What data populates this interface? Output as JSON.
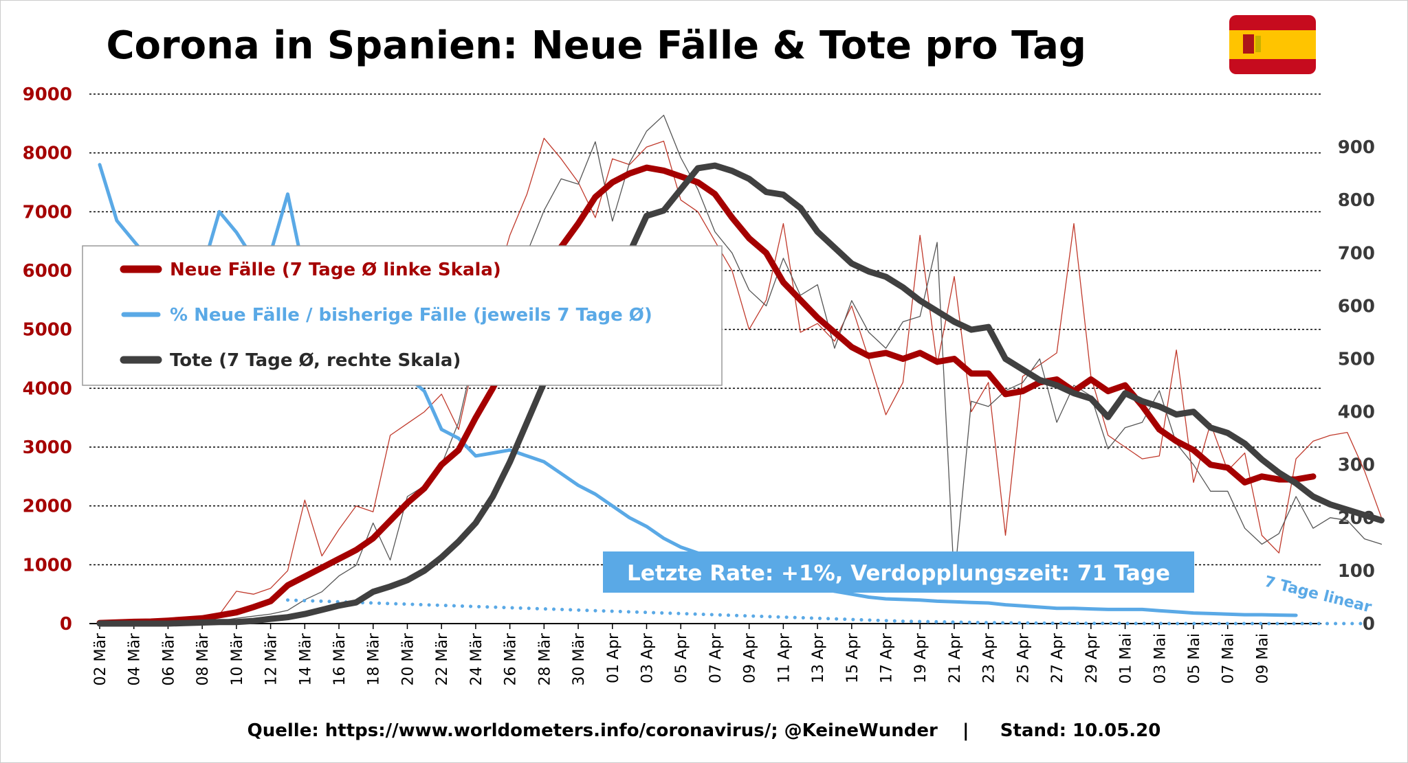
{
  "chart_data": {
    "type": "line",
    "title": "Corona in Spanien: Neue Fälle & Tote pro Tag",
    "left_axis": {
      "ylim": [
        0,
        9000
      ],
      "ticks": [
        0,
        1000,
        2000,
        3000,
        4000,
        5000,
        6000,
        7000,
        8000,
        9000
      ]
    },
    "right_axis": {
      "ylim": [
        0,
        1000
      ],
      "ticks": [
        0,
        100,
        200,
        300,
        400,
        500,
        600,
        700,
        800,
        900
      ]
    },
    "x_start": "2020-03-02",
    "x_labels": [
      "02 Mär",
      "04 Mär",
      "06 Mär",
      "08 Mär",
      "10 Mär",
      "12 Mär",
      "14 Mär",
      "16 Mär",
      "18 Mär",
      "20 Mär",
      "22 Mär",
      "24 Mär",
      "26 Mär",
      "28 Mär",
      "30 Mär",
      "01 Apr",
      "03 Apr",
      "05 Apr",
      "07 Apr",
      "09 Apr",
      "11 Apr",
      "13 Apr",
      "15 Apr",
      "17 Apr",
      "19 Apr",
      "21 Apr",
      "23 Apr",
      "25 Apr",
      "27 Apr",
      "29 Apr",
      "01 Mai",
      "03 Mai",
      "05 Mai",
      "07 Mai",
      "09 Mai"
    ],
    "grid": true,
    "legend_placement": "upper-left",
    "series": [
      {
        "name": "Neue Fälle (7 Tage Ø linke Skala)",
        "axis": "left",
        "color": "#a50000",
        "width": "thick",
        "values": [
          10,
          20,
          30,
          35,
          50,
          70,
          90,
          140,
          190,
          280,
          380,
          650,
          800,
          950,
          1100,
          1250,
          1450,
          1750,
          2050,
          2300,
          2700,
          2950,
          3500,
          4000,
          4600,
          5300,
          5900,
          6400,
          6800,
          7250,
          7500,
          7650,
          7750,
          7700,
          7600,
          7500,
          7300,
          6900,
          6550,
          6300,
          5800,
          5500,
          5200,
          4950,
          4700,
          4550,
          4600,
          4500,
          4600,
          4450,
          4500,
          4250,
          4250,
          3900,
          3950,
          4100,
          4150,
          3950,
          4150,
          3950,
          4050,
          3700,
          3300,
          3100,
          2950,
          2700,
          2650,
          2400,
          2500,
          2450,
          2450,
          2500
        ]
      },
      {
        "name": "Tote (7 Tage Ø, rechte Skala)",
        "axis": "right",
        "color": "#404040",
        "width": "thick",
        "values": [
          0,
          0,
          0,
          0,
          0,
          1,
          2,
          3,
          3,
          5,
          9,
          12,
          18,
          26,
          34,
          40,
          60,
          70,
          82,
          100,
          125,
          155,
          190,
          240,
          305,
          380,
          455,
          520,
          570,
          600,
          640,
          700,
          770,
          780,
          820,
          860,
          865,
          855,
          840,
          815,
          810,
          785,
          740,
          710,
          680,
          665,
          655,
          635,
          610,
          590,
          570,
          555,
          560,
          500,
          480,
          460,
          450,
          435,
          425,
          390,
          435,
          420,
          410,
          395,
          400,
          370,
          360,
          340,
          310,
          285,
          265,
          240,
          225,
          215,
          205,
          195
        ]
      },
      {
        "name": "% Neue Fälle / bisherige Fälle (jeweils 7 Tage Ø)",
        "axis": "left",
        "color": "#5aa9e6",
        "width": "medium",
        "values": [
          7800,
          6850,
          6500,
          6150,
          5900,
          5800,
          6000,
          7000,
          6650,
          6200,
          6300,
          7300,
          5900,
          5500,
          5250,
          5100,
          4900,
          4550,
          4200,
          3950,
          3300,
          3150,
          2850,
          2900,
          2950,
          2850,
          2750,
          2550,
          2350,
          2200,
          2000,
          1800,
          1650,
          1450,
          1300,
          1200,
          1100,
          1000,
          920,
          850,
          800,
          700,
          620,
          550,
          500,
          450,
          420,
          410,
          400,
          380,
          370,
          360,
          350,
          320,
          300,
          280,
          260,
          260,
          250,
          240,
          240,
          240,
          220,
          200,
          180,
          170,
          160,
          150,
          150,
          145,
          140
        ]
      },
      {
        "name": "Neue Fälle (täglich)",
        "axis": "left",
        "color": "#c0392b",
        "width": "thin",
        "values": [
          10,
          20,
          30,
          30,
          40,
          80,
          100,
          150,
          550,
          500,
          600,
          900,
          2100,
          1150,
          1600,
          2000,
          1900,
          3200,
          3400,
          3600,
          3900,
          3300,
          4600,
          5600,
          6600,
          7300,
          8250,
          7900,
          7500,
          6900,
          7900,
          7800,
          8100,
          8200,
          7200,
          7000,
          6500,
          6000,
          5000,
          5500,
          6800,
          4950,
          5100,
          4800,
          5400,
          4500,
          3550,
          4100,
          6600,
          4400,
          5900,
          3600,
          4100,
          1500,
          4200,
          4400,
          4600,
          6800,
          4200,
          3200,
          3000,
          2800,
          2850,
          4650,
          2400,
          3400,
          2600,
          2900,
          1500,
          1200,
          2800,
          3100,
          3200,
          3250,
          2600,
          1800
        ]
      },
      {
        "name": "Tote (täglich)",
        "axis": "right",
        "color": "#555555",
        "width": "thin",
        "values": [
          0,
          0,
          0,
          0,
          0,
          2,
          3,
          5,
          10,
          14,
          18,
          25,
          45,
          60,
          90,
          110,
          190,
          120,
          240,
          260,
          300,
          380,
          520,
          640,
          560,
          700,
          780,
          840,
          830,
          910,
          760,
          870,
          930,
          960,
          880,
          820,
          740,
          700,
          630,
          600,
          690,
          620,
          640,
          520,
          610,
          550,
          520,
          570,
          580,
          720,
          80,
          420,
          410,
          440,
          455,
          500,
          380,
          450,
          430,
          330,
          370,
          380,
          440,
          340,
          300,
          250,
          250,
          180,
          150,
          170,
          240,
          180,
          200,
          195,
          160,
          150
        ]
      },
      {
        "name": "7 Tage linear",
        "axis": "left",
        "color": "#5aa9e6",
        "width": "dotted",
        "values_start_index": 11,
        "values": [
          400,
          390,
          380,
          370,
          360,
          350,
          340,
          330,
          320,
          310,
          300,
          290,
          280,
          270,
          260,
          250,
          240,
          230,
          220,
          210,
          200,
          190,
          180,
          170,
          160,
          150,
          140,
          130,
          120,
          110,
          100,
          90,
          80,
          70,
          60,
          50,
          40,
          35,
          30,
          25,
          20,
          15,
          12,
          10,
          8,
          6,
          5,
          4,
          3,
          2,
          1,
          1,
          0,
          0,
          0,
          0,
          0,
          0,
          0,
          0,
          0,
          0,
          0,
          0
        ]
      }
    ],
    "legend": [
      {
        "label": "Neue Fälle (7 Tage Ø linke Skala)",
        "color": "#a50000"
      },
      {
        "label": "% Neue Fälle / bisherige Fälle (jeweils 7 Tage Ø)",
        "color": "#5aa9e6"
      },
      {
        "label": "Tote (7 Tage Ø, rechte Skala)",
        "color": "#404040"
      }
    ],
    "annotations": {
      "rate_box": "Letzte Rate: +1%, Verdopplungszeit: 71 Tage",
      "linear_label": "7 Tage linear"
    },
    "source": "Quelle: https://www.worldometers.info/coronavirus/; @KeineWunder    |     Stand: 10.05.20"
  },
  "colors": {
    "red": "#a50000",
    "blue": "#5aa9e6",
    "dark": "#404040",
    "flag_red": "#c60b1e",
    "flag_yellow": "#ffc400"
  },
  "icons": {
    "flag": "spain-flag-icon"
  }
}
